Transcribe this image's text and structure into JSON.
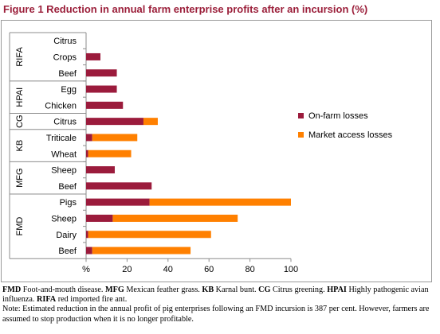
{
  "title": "Figure 1 Reduction in annual farm enterprise profits after an incursion (%)",
  "chart_data": {
    "type": "bar",
    "orientation": "horizontal",
    "stacked": true,
    "xlabel": "%",
    "xlim": [
      0,
      100
    ],
    "xticks": [
      "",
      "20",
      "40",
      "60",
      "80",
      "100"
    ],
    "grid": false,
    "legend_position": "right",
    "groups": [
      {
        "label": "RIFA",
        "categories": [
          "Citrus",
          "Crops",
          "Beef"
        ]
      },
      {
        "label": "HPAI",
        "categories": [
          "Egg",
          "Chicken"
        ]
      },
      {
        "label": "CG",
        "categories": [
          "Citrus"
        ]
      },
      {
        "label": "KB",
        "categories": [
          "Triticale",
          "Wheat"
        ]
      },
      {
        "label": "MFG",
        "categories": [
          "Sheep",
          "Beef"
        ]
      },
      {
        "label": "FMD",
        "categories": [
          "Pigs",
          "Sheep",
          "Dairy",
          "Beef"
        ]
      }
    ],
    "series": [
      {
        "name": "On-farm losses",
        "color": "#9b1b3c",
        "values": [
          0,
          7,
          15,
          15,
          18,
          28,
          3,
          1,
          14,
          32,
          31,
          13,
          1,
          3
        ]
      },
      {
        "name": "Market access losses",
        "color": "#ff8000",
        "values": [
          0,
          0,
          0,
          0,
          0,
          7,
          22,
          21,
          0,
          0,
          69,
          61,
          60,
          48
        ]
      }
    ]
  },
  "caption": {
    "abbr": [
      {
        "term": "FMD",
        "text": " Foot-and-mouth disease. "
      },
      {
        "term": "MFG",
        "text": " Mexican feather grass. "
      },
      {
        "term": "KB",
        "text": " Karnal bunt. "
      },
      {
        "term": "CG",
        "text": " Citrus greening. "
      },
      {
        "term": "HPAI",
        "text": " Highly pathogenic avian influenza. "
      },
      {
        "term": "RIFA",
        "text": " red imported fire ant."
      }
    ],
    "note": "Note: Estimated reduction in the annual profit of pig enterprises following an FMD incursion is 387 per cent. However, farmers are assumed to stop production when it is no longer profitable."
  }
}
